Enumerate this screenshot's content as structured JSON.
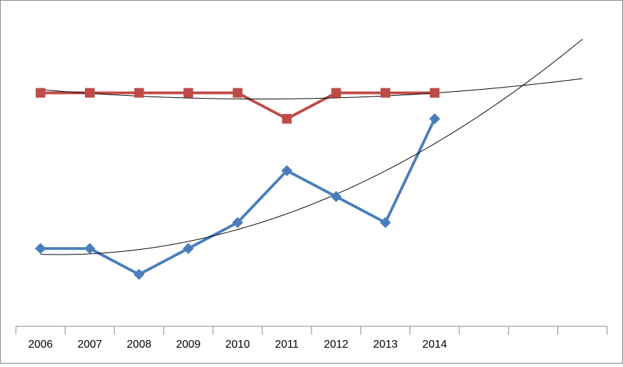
{
  "chart_data": {
    "type": "line",
    "categories": [
      "2006",
      "2007",
      "2008",
      "2009",
      "2010",
      "2011",
      "2012",
      "2013",
      "2014",
      null,
      null,
      null
    ],
    "series": [
      {
        "color": "#4a7ebb",
        "marker": "diamond",
        "values": [
          3,
          3,
          2,
          3,
          4,
          6,
          5,
          4,
          8,
          null,
          null,
          null
        ]
      },
      {
        "color": "#be4b48",
        "marker": "square",
        "values": [
          9,
          9,
          9,
          9,
          9,
          8,
          9,
          9,
          9,
          null,
          null,
          null
        ]
      }
    ],
    "ylim": [
      0,
      12.5
    ],
    "trendline": {
      "type": "polynomial",
      "order": 2,
      "color": "#000000"
    }
  }
}
